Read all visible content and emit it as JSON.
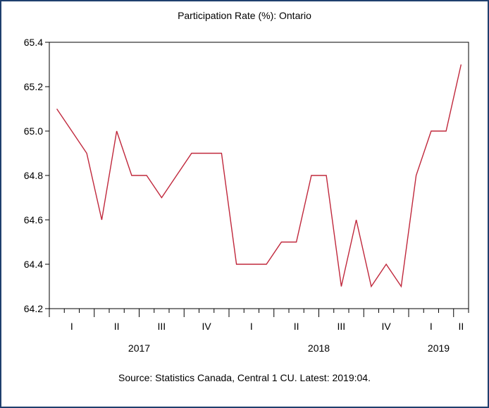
{
  "chart_data": {
    "type": "line",
    "title": "Participation Rate (%): Ontario",
    "source": "Source: Statistics Canada, Central 1 CU. Latest: 2019:04.",
    "x": [
      "2017-01",
      "2017-02",
      "2017-03",
      "2017-04",
      "2017-05",
      "2017-06",
      "2017-07",
      "2017-08",
      "2017-09",
      "2017-10",
      "2017-11",
      "2017-12",
      "2018-01",
      "2018-02",
      "2018-03",
      "2018-04",
      "2018-05",
      "2018-06",
      "2018-07",
      "2018-08",
      "2018-09",
      "2018-10",
      "2018-11",
      "2018-12",
      "2019-01",
      "2019-02",
      "2019-03",
      "2019-04"
    ],
    "series": [
      {
        "values": [
          65.1,
          65.0,
          64.9,
          64.6,
          65.0,
          64.8,
          64.8,
          64.7,
          64.8,
          64.9,
          64.9,
          64.9,
          64.4,
          64.4,
          64.4,
          64.5,
          64.5,
          64.8,
          64.8,
          64.3,
          64.6,
          64.3,
          64.4,
          64.3,
          64.8,
          65.0,
          65.0,
          65.3
        ],
        "color": "#c0283c"
      }
    ],
    "ylim": [
      64.2,
      65.4
    ],
    "yticks": [
      "64.2",
      "64.4",
      "64.6",
      "64.8",
      "65.0",
      "65.2",
      "65.4"
    ],
    "quarter_labels": [
      "I",
      "II",
      "III",
      "IV",
      "I",
      "II",
      "III",
      "IV",
      "I",
      "II"
    ],
    "year_labels": [
      "2017",
      "2018",
      "2019"
    ],
    "grid": false
  }
}
